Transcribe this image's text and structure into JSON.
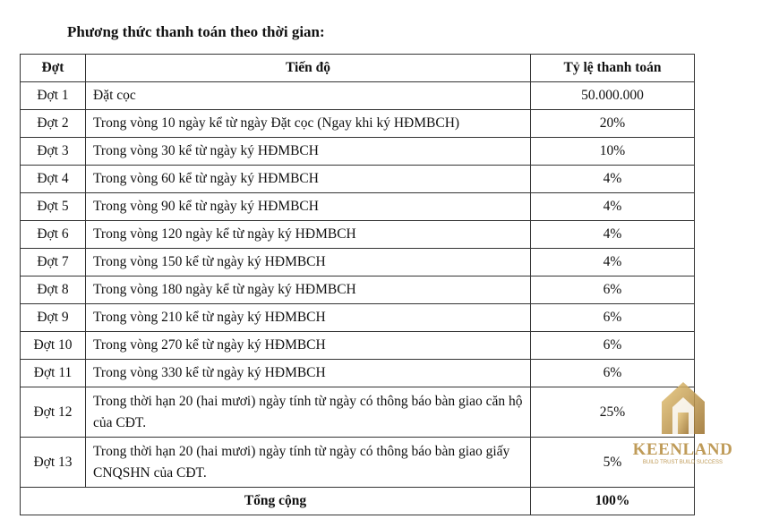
{
  "title": "Phương thức thanh toán theo thời gian:",
  "table": {
    "header": [
      "Đợt",
      "Tiến độ",
      "Tỷ lệ thanh toán"
    ],
    "rows": [
      [
        "Đợt 1",
        "Đặt cọc",
        "50.000.000"
      ],
      [
        "Đợt 2",
        "Trong vòng 10 ngày kể từ ngày Đặt cọc (Ngay khi ký HĐMBCH)",
        "20%"
      ],
      [
        "Đợt 3",
        "Trong vòng 30 kể từ ngày ký HĐMBCH",
        "10%"
      ],
      [
        "Đợt 4",
        "Trong vòng 60 kể từ ngày ký HĐMBCH",
        "4%"
      ],
      [
        "Đợt 5",
        "Trong vòng 90 kể từ ngày ký HĐMBCH",
        "4%"
      ],
      [
        "Đợt 6",
        "Trong vòng 120 ngày kể từ ngày ký HĐMBCH",
        "4%"
      ],
      [
        "Đợt 7",
        "Trong vòng 150 kể từ ngày ký HĐMBCH",
        "4%"
      ],
      [
        "Đợt 8",
        "Trong vòng 180 ngày kể từ ngày ký HĐMBCH",
        "6%"
      ],
      [
        "Đợt 9",
        "Trong vòng 210 kể từ ngày ký HĐMBCH",
        "6%"
      ],
      [
        "Đợt 10",
        "Trong vòng 270 kể từ ngày ký HĐMBCH",
        "6%"
      ],
      [
        "Đợt 11",
        "Trong vòng 330 kể từ ngày ký HĐMBCH",
        "6%"
      ],
      [
        "Đợt 12",
        "Trong thời hạn 20 (hai mươi) ngày tính từ ngày có thông báo bàn giao căn hộ của CĐT.",
        "25%"
      ],
      [
        "Đợt 13",
        "Trong thời hạn 20 (hai mươi) ngày tính từ ngày có thông báo bàn giao giấy CNQSHN của CĐT.",
        "5%"
      ]
    ],
    "footer": [
      "Tổng cộng",
      "100%"
    ]
  },
  "watermark": {
    "brand": "KEENLAND",
    "tagline": "BUILD TRUST BUILD SUCCESS"
  }
}
